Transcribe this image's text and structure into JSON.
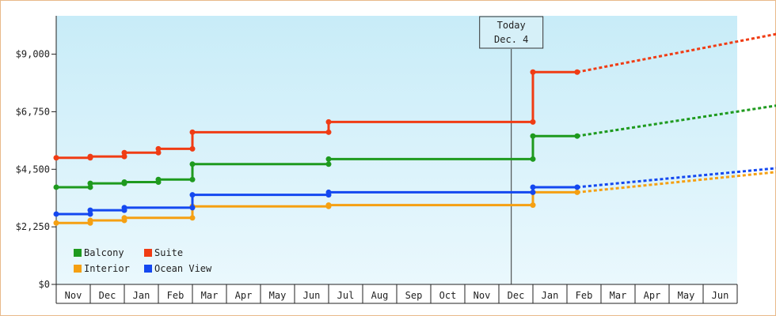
{
  "chart_data": {
    "type": "line",
    "title": "",
    "xlabel": "",
    "ylabel": "",
    "ylim": [
      0,
      10500
    ],
    "y_ticks": [
      {
        "value": 0,
        "label": "$0"
      },
      {
        "value": 2250,
        "label": "$2,250"
      },
      {
        "value": 4500,
        "label": "$4,500"
      },
      {
        "value": 6750,
        "label": "$6,750"
      },
      {
        "value": 9000,
        "label": "$9,000"
      }
    ],
    "x_months": [
      "Nov",
      "Dec",
      "Jan",
      "Feb",
      "Mar",
      "Apr",
      "May",
      "Jun",
      "Jul",
      "Aug",
      "Sep",
      "Oct",
      "Nov",
      "Dec",
      "Jan",
      "Feb",
      "Mar",
      "Apr",
      "May",
      "Jun"
    ],
    "x_range": [
      0,
      20
    ],
    "grid": false,
    "legend_placement": "bottom-left",
    "background_gradient": [
      "#c8ecf8",
      "#eaf8fd"
    ],
    "today_marker": {
      "x": 13.0,
      "line1": "Today",
      "line2": "Dec. 4"
    },
    "series": [
      {
        "name": "Balcony",
        "color": "#1e9a1e",
        "points": [
          [
            0,
            3800
          ],
          [
            1,
            3800
          ],
          [
            1,
            3950
          ],
          [
            2,
            3950
          ],
          [
            2,
            4000
          ],
          [
            3,
            4000
          ],
          [
            3,
            4100
          ],
          [
            4,
            4100
          ],
          [
            4,
            4700
          ],
          [
            8,
            4700
          ],
          [
            8,
            4900
          ],
          [
            14,
            4900
          ],
          [
            14,
            5800
          ],
          [
            15.3,
            5800
          ]
        ],
        "forecast": [
          [
            15.3,
            5800
          ],
          [
            21.2,
            7000
          ]
        ]
      },
      {
        "name": "Suite",
        "color": "#f03c14",
        "points": [
          [
            0,
            4950
          ],
          [
            1,
            4950
          ],
          [
            1,
            5000
          ],
          [
            2,
            5000
          ],
          [
            2,
            5150
          ],
          [
            3,
            5150
          ],
          [
            3,
            5300
          ],
          [
            4,
            5300
          ],
          [
            4,
            5950
          ],
          [
            8,
            5950
          ],
          [
            8,
            6350
          ],
          [
            14,
            6350
          ],
          [
            14,
            8300
          ],
          [
            15.3,
            8300
          ]
        ],
        "forecast": [
          [
            15.3,
            8300
          ],
          [
            21.2,
            9800
          ]
        ]
      },
      {
        "name": "Interior",
        "color": "#f5a012",
        "points": [
          [
            0,
            2400
          ],
          [
            1,
            2400
          ],
          [
            1,
            2500
          ],
          [
            2,
            2500
          ],
          [
            2,
            2600
          ],
          [
            4,
            2600
          ],
          [
            4,
            3050
          ],
          [
            8,
            3050
          ],
          [
            8,
            3100
          ],
          [
            14,
            3100
          ],
          [
            14,
            3600
          ],
          [
            15.3,
            3600
          ]
        ],
        "forecast": [
          [
            15.3,
            3600
          ],
          [
            21.2,
            4400
          ]
        ]
      },
      {
        "name": "Ocean View",
        "color": "#1448f0",
        "points": [
          [
            0,
            2750
          ],
          [
            1,
            2750
          ],
          [
            1,
            2900
          ],
          [
            2,
            2900
          ],
          [
            2,
            3000
          ],
          [
            4,
            3000
          ],
          [
            4,
            3500
          ],
          [
            8,
            3500
          ],
          [
            8,
            3600
          ],
          [
            14,
            3600
          ],
          [
            14,
            3800
          ],
          [
            15.3,
            3800
          ]
        ],
        "forecast": [
          [
            15.3,
            3800
          ],
          [
            21.2,
            4550
          ]
        ]
      }
    ]
  }
}
